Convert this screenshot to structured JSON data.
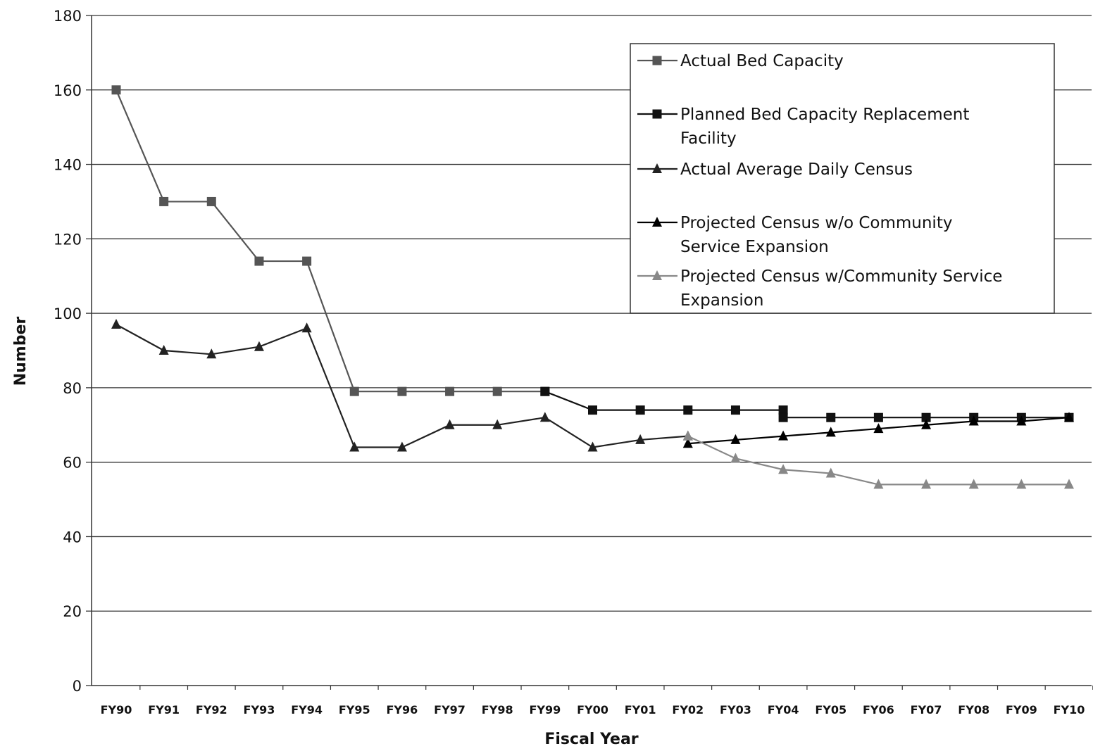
{
  "chart_data": {
    "type": "line",
    "xlabel": "Fiscal Year",
    "ylabel": "Number",
    "ylim": [
      0,
      180
    ],
    "yticks": [
      0,
      20,
      40,
      60,
      80,
      100,
      120,
      140,
      160,
      180
    ],
    "grid": "horizontal",
    "legend_position": "top-right",
    "categories": [
      "FY90",
      "FY91",
      "FY92",
      "FY93",
      "FY94",
      "FY95",
      "FY96",
      "FY97",
      "FY98",
      "FY99",
      "FY00",
      "FY01",
      "FY02",
      "FY03",
      "FY04",
      "FY05",
      "FY06",
      "FY07",
      "FY08",
      "FY09",
      "FY10"
    ],
    "series": [
      {
        "name": "Actual Bed Capacity",
        "marker": "square",
        "color": "#555555",
        "legend_lines": [
          "Actual Bed Capacity"
        ],
        "values": [
          160,
          130,
          130,
          114,
          114,
          79,
          79,
          79,
          79,
          79,
          null,
          null,
          null,
          null,
          null,
          null,
          null,
          null,
          null,
          null,
          null
        ]
      },
      {
        "name": "Planned Bed Capacity Replacement Facility",
        "marker": "square",
        "color": "#111111",
        "legend_lines": [
          "Planned Bed Capacity Replacement",
          "Facility"
        ],
        "values": [
          null,
          null,
          null,
          null,
          null,
          null,
          null,
          null,
          null,
          79,
          74,
          74,
          74,
          74,
          74,
          null,
          null,
          null,
          null,
          null,
          null
        ],
        "values_b": [
          null,
          null,
          null,
          null,
          null,
          null,
          null,
          null,
          null,
          null,
          null,
          null,
          null,
          null,
          72,
          72,
          72,
          72,
          72,
          72,
          72
        ]
      },
      {
        "name": "Actual Average Daily Census",
        "marker": "triangle",
        "color": "#222222",
        "legend_lines": [
          "Actual Average Daily Census"
        ],
        "values": [
          97,
          90,
          89,
          91,
          96,
          64,
          64,
          70,
          70,
          72,
          64,
          66,
          67,
          null,
          null,
          null,
          null,
          null,
          null,
          null,
          null
        ]
      },
      {
        "name": "Projected Census w/o Community Service Expansion",
        "marker": "triangle",
        "color": "#000000",
        "legend_lines": [
          "Projected Census w/o Community",
          "Service Expansion"
        ],
        "values": [
          null,
          null,
          null,
          null,
          null,
          null,
          null,
          null,
          null,
          null,
          null,
          null,
          65,
          66,
          67,
          68,
          69,
          70,
          71,
          71,
          72
        ]
      },
      {
        "name": "Projected Census w/Community Service Expansion",
        "marker": "triangle",
        "color": "#888888",
        "legend_lines": [
          "Projected Census w/Community Service",
          "Expansion"
        ],
        "values": [
          null,
          null,
          null,
          null,
          null,
          null,
          null,
          null,
          null,
          null,
          null,
          null,
          67,
          61,
          58,
          57,
          54,
          54,
          54,
          54,
          54
        ]
      }
    ]
  }
}
